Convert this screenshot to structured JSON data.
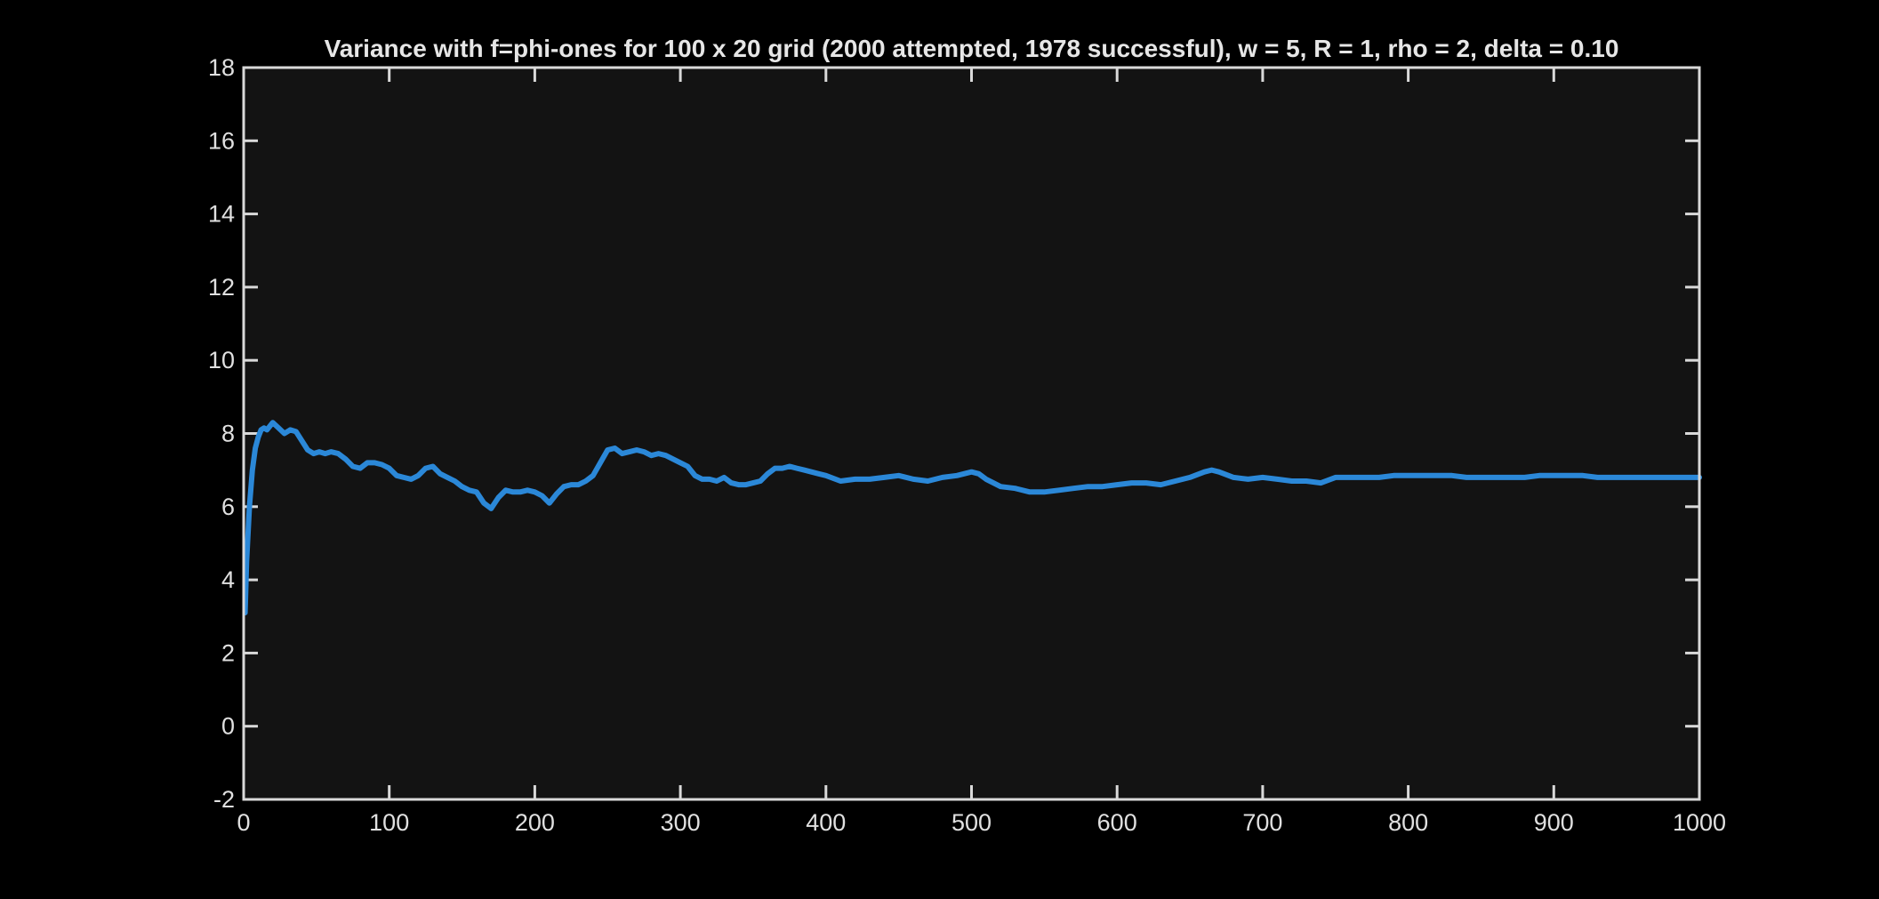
{
  "chart_data": {
    "type": "line",
    "title": "Variance with f=phi-ones for 100 x 20 grid (2000 attempted, 1978 successful), w = 5, R = 1, rho = 2, delta = 0.10",
    "xlabel": "",
    "ylabel": "",
    "xlim": [
      0,
      1000
    ],
    "ylim": [
      -2,
      18
    ],
    "xticks": [
      0,
      100,
      200,
      300,
      400,
      500,
      600,
      700,
      800,
      900,
      1000
    ],
    "yticks": [
      -2,
      0,
      2,
      4,
      6,
      8,
      10,
      12,
      14,
      16,
      18
    ],
    "grid": false,
    "colors": {
      "background": "#000000",
      "axes_bg": "#131313",
      "axes": "#d9d9d9",
      "line": "#2b88d8"
    },
    "series": [
      {
        "x": [
          1,
          2,
          4,
          6,
          8,
          10,
          12,
          14,
          16,
          18,
          20,
          24,
          28,
          32,
          36,
          40,
          44,
          48,
          52,
          56,
          60,
          65,
          70,
          75,
          80,
          85,
          90,
          95,
          100,
          105,
          110,
          115,
          120,
          125,
          130,
          135,
          140,
          145,
          150,
          155,
          160,
          165,
          170,
          175,
          180,
          185,
          190,
          195,
          200,
          205,
          210,
          215,
          220,
          225,
          230,
          235,
          240,
          245,
          250,
          255,
          260,
          265,
          270,
          275,
          280,
          285,
          290,
          295,
          300,
          305,
          310,
          315,
          320,
          325,
          330,
          335,
          340,
          345,
          350,
          355,
          360,
          365,
          370,
          375,
          380,
          385,
          390,
          395,
          400,
          410,
          420,
          430,
          440,
          450,
          460,
          470,
          480,
          490,
          500,
          505,
          510,
          515,
          520,
          530,
          540,
          550,
          560,
          570,
          580,
          590,
          600,
          610,
          620,
          630,
          640,
          650,
          660,
          665,
          670,
          680,
          690,
          700,
          710,
          720,
          730,
          740,
          750,
          760,
          770,
          780,
          790,
          800,
          810,
          820,
          830,
          840,
          850,
          860,
          870,
          880,
          890,
          900,
          910,
          920,
          930,
          940,
          950,
          960,
          970,
          980,
          990,
          1000
        ],
        "y": [
          3.1,
          4.5,
          6.0,
          7.0,
          7.6,
          7.9,
          8.1,
          8.15,
          8.1,
          8.2,
          8.3,
          8.15,
          8.0,
          8.1,
          8.05,
          7.8,
          7.55,
          7.45,
          7.5,
          7.45,
          7.5,
          7.45,
          7.3,
          7.1,
          7.05,
          7.2,
          7.2,
          7.15,
          7.05,
          6.85,
          6.8,
          6.75,
          6.85,
          7.05,
          7.1,
          6.9,
          6.8,
          6.7,
          6.55,
          6.45,
          6.4,
          6.1,
          5.95,
          6.25,
          6.45,
          6.4,
          6.4,
          6.45,
          6.4,
          6.3,
          6.1,
          6.35,
          6.55,
          6.6,
          6.6,
          6.7,
          6.85,
          7.2,
          7.55,
          7.6,
          7.45,
          7.5,
          7.55,
          7.5,
          7.4,
          7.45,
          7.4,
          7.3,
          7.2,
          7.1,
          6.85,
          6.75,
          6.75,
          6.7,
          6.8,
          6.65,
          6.6,
          6.6,
          6.65,
          6.7,
          6.9,
          7.05,
          7.05,
          7.1,
          7.05,
          7.0,
          6.95,
          6.9,
          6.85,
          6.7,
          6.75,
          6.75,
          6.8,
          6.85,
          6.75,
          6.7,
          6.8,
          6.85,
          6.95,
          6.9,
          6.75,
          6.65,
          6.55,
          6.5,
          6.4,
          6.4,
          6.45,
          6.5,
          6.55,
          6.55,
          6.6,
          6.65,
          6.65,
          6.6,
          6.7,
          6.8,
          6.95,
          7.0,
          6.95,
          6.8,
          6.75,
          6.8,
          6.75,
          6.7,
          6.7,
          6.65,
          6.8,
          6.8,
          6.8,
          6.8,
          6.85,
          6.85,
          6.85,
          6.85,
          6.85,
          6.8,
          6.8,
          6.8,
          6.8,
          6.8,
          6.85,
          6.85,
          6.85,
          6.85,
          6.8,
          6.8,
          6.8,
          6.8,
          6.8,
          6.8,
          6.8,
          6.8
        ]
      }
    ]
  }
}
